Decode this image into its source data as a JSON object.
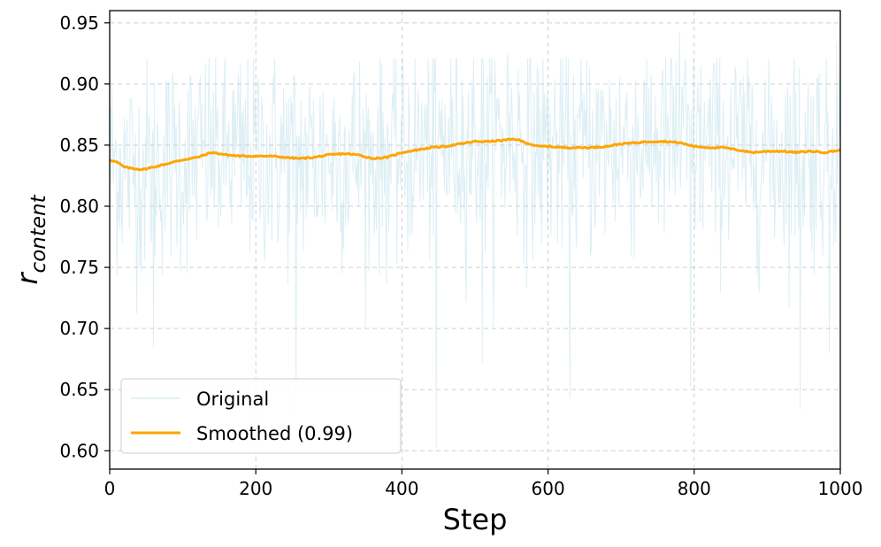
{
  "chart_data": {
    "type": "line",
    "title": "",
    "xlabel": "Step",
    "ylabel_main": "r",
    "ylabel_sub": "content",
    "xlim": [
      0,
      1000
    ],
    "ylim": [
      0.585,
      0.96
    ],
    "xticks": [
      0,
      200,
      400,
      600,
      800,
      1000
    ],
    "xtick_labels": [
      "0",
      "200",
      "400",
      "600",
      "800",
      "1000"
    ],
    "yticks": [
      0.6,
      0.65,
      0.7,
      0.75,
      0.8,
      0.85,
      0.9,
      0.95
    ],
    "ytick_labels": [
      "0.60",
      "0.65",
      "0.70",
      "0.75",
      "0.80",
      "0.85",
      "0.90",
      "0.95"
    ],
    "grid": true,
    "legend_position": "lower-left",
    "series": [
      {
        "name": "Original",
        "color": "#add8e6",
        "style": "noisy raw signal around smoothed curve",
        "noise_sigma": 0.045,
        "notable_lows": [
          {
            "x": 60,
            "y": 0.685
          },
          {
            "x": 255,
            "y": 0.625
          },
          {
            "x": 447,
            "y": 0.602
          },
          {
            "x": 510,
            "y": 0.672
          },
          {
            "x": 630,
            "y": 0.643
          },
          {
            "x": 795,
            "y": 0.652
          },
          {
            "x": 945,
            "y": 0.634
          },
          {
            "x": 985,
            "y": 0.68
          }
        ],
        "notable_highs": [
          {
            "x": 545,
            "y": 0.924
          },
          {
            "x": 780,
            "y": 0.942
          },
          {
            "x": 995,
            "y": 0.934
          }
        ]
      },
      {
        "name": "Smoothed (0.99)",
        "color": "#ffa500",
        "x": [
          0,
          10,
          20,
          30,
          45,
          60,
          80,
          100,
          120,
          140,
          160,
          180,
          200,
          220,
          240,
          260,
          280,
          300,
          320,
          340,
          360,
          380,
          400,
          420,
          440,
          460,
          480,
          500,
          520,
          540,
          555,
          570,
          585,
          600,
          620,
          640,
          660,
          680,
          700,
          720,
          740,
          760,
          780,
          800,
          820,
          840,
          860,
          880,
          900,
          920,
          940,
          960,
          980,
          1000
        ],
        "values": [
          0.838,
          0.836,
          0.832,
          0.831,
          0.83,
          0.832,
          0.835,
          0.838,
          0.84,
          0.844,
          0.842,
          0.841,
          0.841,
          0.841,
          0.84,
          0.839,
          0.84,
          0.842,
          0.843,
          0.842,
          0.839,
          0.84,
          0.844,
          0.846,
          0.848,
          0.849,
          0.851,
          0.853,
          0.853,
          0.854,
          0.855,
          0.852,
          0.849,
          0.849,
          0.848,
          0.848,
          0.848,
          0.849,
          0.851,
          0.852,
          0.853,
          0.853,
          0.852,
          0.849,
          0.848,
          0.848,
          0.846,
          0.844,
          0.845,
          0.845,
          0.844,
          0.845,
          0.844,
          0.846
        ]
      }
    ]
  }
}
